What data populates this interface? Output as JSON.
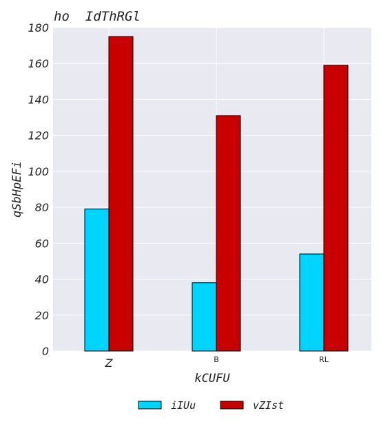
{
  "chart_data": {
    "type": "bar",
    "title": "ho  IdThRGl",
    "xlabel": "kCUFU",
    "ylabel": "qSbHpEFi",
    "categories": [
      "Z",
      "B",
      "RL"
    ],
    "series": [
      {
        "name": "iIUu",
        "values": [
          79,
          38,
          54
        ],
        "color": "#00d5ff"
      },
      {
        "name": "vZIst",
        "values": [
          175,
          131,
          159
        ],
        "color": "#c80000"
      }
    ],
    "ylim": [
      0,
      180
    ],
    "yticks": [
      0,
      20,
      40,
      60,
      80,
      100,
      120,
      140,
      160,
      180
    ],
    "grid": true,
    "legend": "bottom-center",
    "colors": {
      "plot_background": "#e9e9f2",
      "grid": "#ffffff",
      "bar_edge": "#000000"
    }
  }
}
